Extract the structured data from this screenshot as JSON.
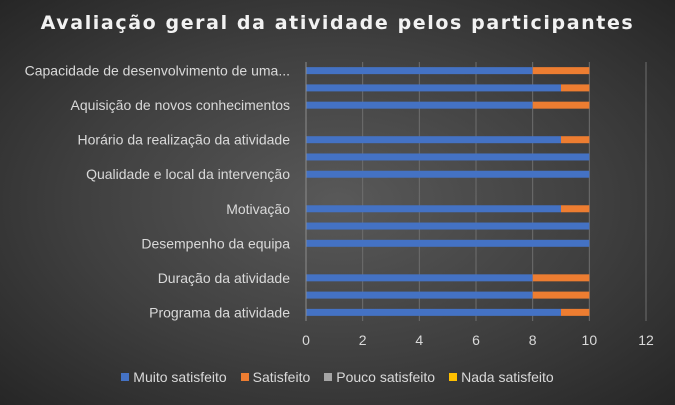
{
  "chart_data": {
    "type": "bar",
    "orientation": "horizontal",
    "stacked": true,
    "title": "Avaliação geral da atividade pelos participantes",
    "categories": [
      "Programa da atividade",
      "",
      "Duração da atividade",
      "",
      "Desempenho da equipa",
      "",
      "Motivação",
      "",
      "Qualidade e local da intervenção",
      "",
      "Horário da realização da atividade",
      "",
      "Aquisição de novos conhecimentos",
      "",
      "Capacidade de desenvolvimento de uma..."
    ],
    "series": [
      {
        "name": "Muito satisfeito",
        "color": "#4472c4",
        "values": [
          9,
          8,
          8,
          null,
          10,
          10,
          9,
          null,
          10,
          10,
          9,
          null,
          8,
          9,
          8
        ]
      },
      {
        "name": "Satisfeito",
        "color": "#ed7d31",
        "values": [
          1,
          2,
          2,
          null,
          0,
          0,
          1,
          null,
          0,
          0,
          1,
          null,
          2,
          1,
          2
        ]
      },
      {
        "name": "Pouco satisfeito",
        "color": "#a5a5a5",
        "values": [
          0,
          0,
          0,
          null,
          0,
          0,
          0,
          null,
          0,
          0,
          0,
          null,
          0,
          0,
          0
        ]
      },
      {
        "name": "Nada satisfeito",
        "color": "#ffc000",
        "values": [
          0,
          0,
          0,
          null,
          0,
          0,
          0,
          null,
          0,
          0,
          0,
          null,
          0,
          0,
          0
        ]
      }
    ],
    "xlim": [
      0,
      12
    ],
    "xticks": [
      "0",
      "2",
      "4",
      "6",
      "8",
      "10",
      "12"
    ],
    "grid": true,
    "legend_position": "bottom"
  }
}
